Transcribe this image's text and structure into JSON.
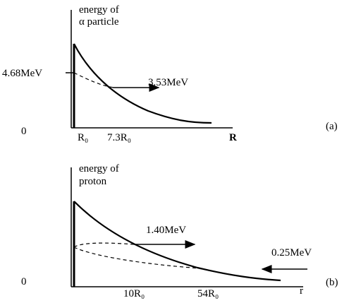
{
  "panel_a": {
    "axis_title_line1": "energy of",
    "axis_title_line2": "α particle",
    "barrier_label": "4.68MeV",
    "origin_label": "0",
    "r0_label": "R₀",
    "exit_label": "7.3R₀",
    "energy_label": "3.53MeV",
    "x_label": "R",
    "panel_label": "(a)"
  },
  "panel_b": {
    "axis_title_line1": "energy of",
    "axis_title_line2": "proton",
    "energy_label_high": "1.40MeV",
    "energy_label_low": "0.25MeV",
    "origin_label": "0",
    "mark_1": "10R₀",
    "mark_2": "54R₀",
    "x_label": "r",
    "panel_label": "(b)"
  }
}
